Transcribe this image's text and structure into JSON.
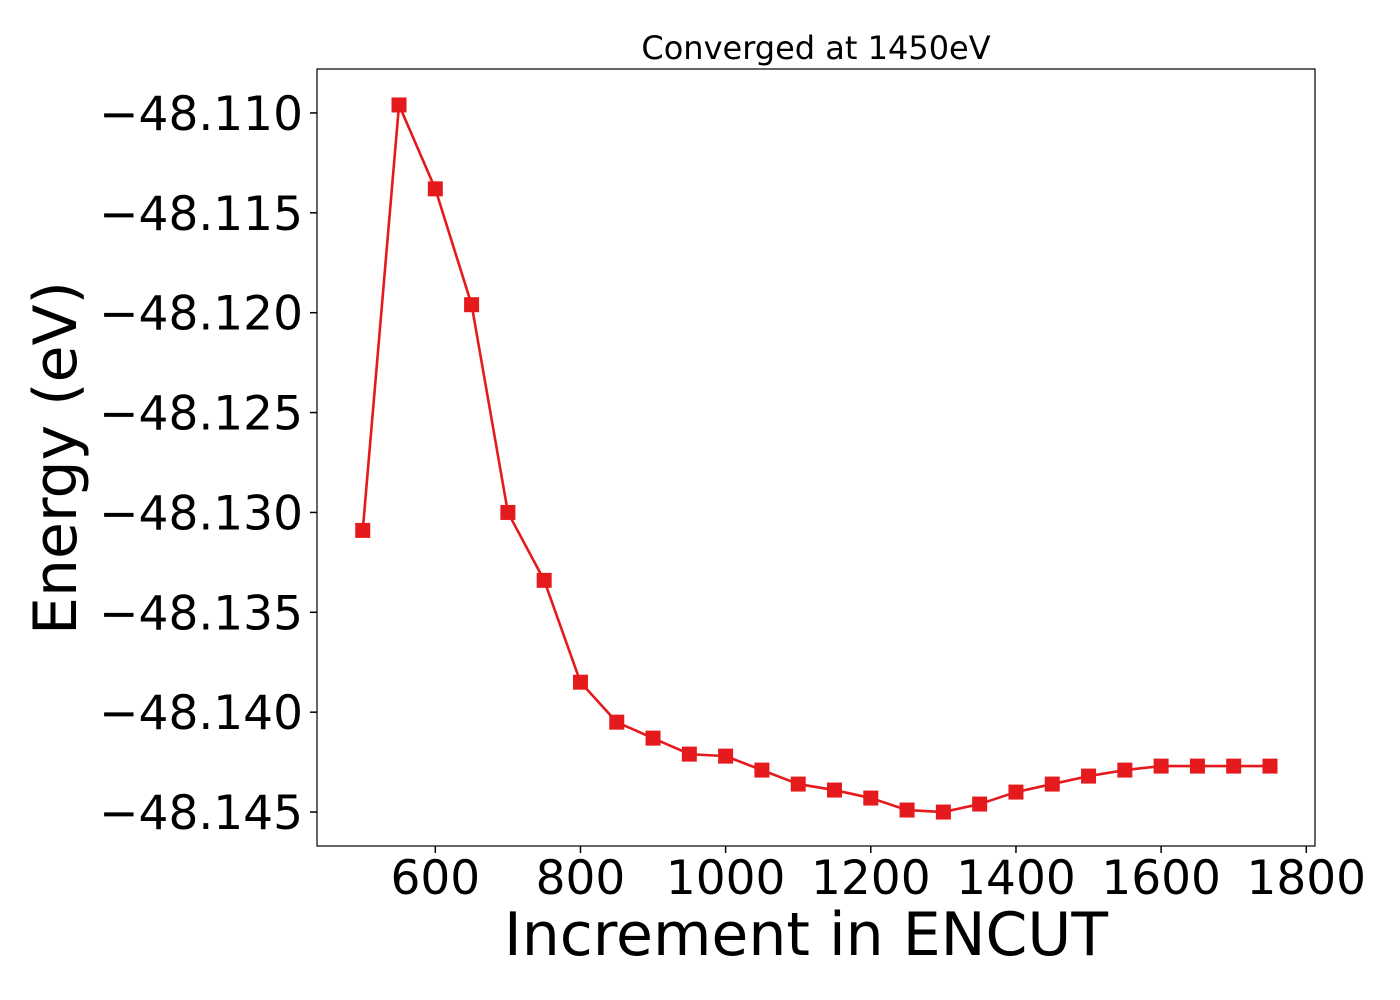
{
  "chart_data": {
    "type": "line",
    "title": "Converged at 1450eV",
    "xlabel": "Increment in ENCUT",
    "ylabel": "Energy (eV)",
    "xlim": [
      437,
      1812
    ],
    "ylim": [
      -48.1467,
      -48.1078
    ],
    "xticks": [
      600,
      800,
      1000,
      1200,
      1400,
      1600,
      1800
    ],
    "yticks": [
      -48.11,
      -48.115,
      -48.12,
      -48.125,
      -48.13,
      -48.135,
      -48.14,
      -48.145
    ],
    "ytick_labels": [
      "−48.110",
      "−48.115",
      "−48.120",
      "−48.125",
      "−48.130",
      "−48.135",
      "−48.140",
      "−48.145"
    ],
    "grid": false,
    "marker": "square",
    "color": "#e41a1c",
    "x": [
      500,
      550,
      600,
      650,
      700,
      750,
      800,
      850,
      900,
      950,
      1000,
      1050,
      1100,
      1150,
      1200,
      1250,
      1300,
      1350,
      1400,
      1450,
      1500,
      1550,
      1600,
      1650,
      1700,
      1750
    ],
    "y": [
      -48.1309,
      -48.1096,
      -48.1138,
      -48.1196,
      -48.13,
      -48.1334,
      -48.1385,
      -48.1405,
      -48.1413,
      -48.1421,
      -48.1422,
      -48.1429,
      -48.1436,
      -48.1439,
      -48.1443,
      -48.1449,
      -48.145,
      -48.1446,
      -48.144,
      -48.1436,
      -48.1432,
      -48.1429,
      -48.1427,
      -48.1427,
      -48.1427,
      -48.1427
    ]
  }
}
